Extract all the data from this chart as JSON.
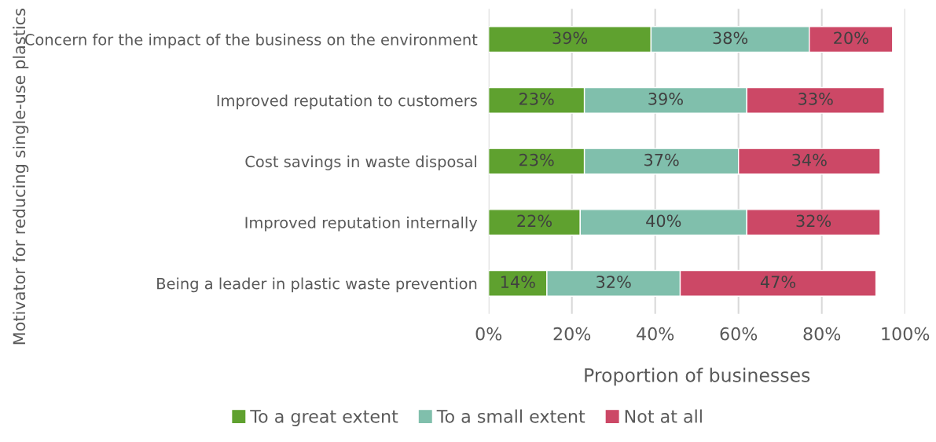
{
  "chart_data": {
    "type": "bar",
    "orientation": "horizontal",
    "stacked": true,
    "xlabel": "Proportion of businesses",
    "ylabel": "Motivator for reducing single-use plastics",
    "categories": [
      "Concern for the impact of the business on the environment",
      "Improved reputation to customers",
      "Cost savings in waste disposal",
      "Improved reputation internally",
      "Being a leader in plastic waste prevention"
    ],
    "series": [
      {
        "name": "To a great extent",
        "color": "#5fa12f",
        "values": [
          39,
          23,
          23,
          22,
          14
        ],
        "value_labels": [
          "39%",
          "23%",
          "23%",
          "22%",
          "14%"
        ]
      },
      {
        "name": "To a small extent",
        "color": "#80bfac",
        "values": [
          38,
          39,
          37,
          40,
          32
        ],
        "value_labels": [
          "38%",
          "39%",
          "37%",
          "40%",
          "32%"
        ]
      },
      {
        "name": "Not at all",
        "color": "#cc4866",
        "values": [
          20,
          33,
          34,
          32,
          47
        ],
        "value_labels": [
          "20%",
          "33%",
          "34%",
          "32%",
          "47%"
        ]
      }
    ],
    "xlim": [
      0,
      100
    ],
    "xticks": [
      {
        "value": 0,
        "label": "0%"
      },
      {
        "value": 20,
        "label": "20%"
      },
      {
        "value": 40,
        "label": "40%"
      },
      {
        "value": 60,
        "label": "60%"
      },
      {
        "value": 80,
        "label": "80%"
      },
      {
        "value": 100,
        "label": "100%"
      }
    ],
    "grid": "x",
    "legend": "bottom"
  }
}
